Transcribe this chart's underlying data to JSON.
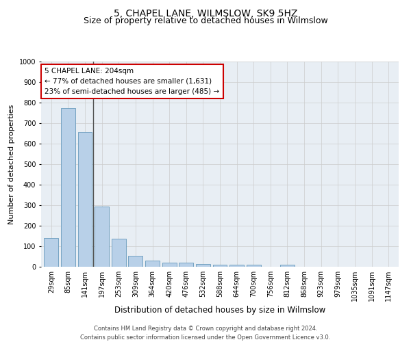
{
  "title": "5, CHAPEL LANE, WILMSLOW, SK9 5HZ",
  "subtitle": "Size of property relative to detached houses in Wilmslow",
  "xlabel": "Distribution of detached houses by size in Wilmslow",
  "ylabel": "Number of detached properties",
  "bar_values": [
    140,
    775,
    658,
    295,
    138,
    55,
    30,
    20,
    20,
    14,
    10,
    10,
    10,
    0,
    10,
    0,
    0,
    0,
    0,
    0,
    0
  ],
  "bar_labels": [
    "29sqm",
    "85sqm",
    "141sqm",
    "197sqm",
    "253sqm",
    "309sqm",
    "364sqm",
    "420sqm",
    "476sqm",
    "532sqm",
    "588sqm",
    "644sqm",
    "700sqm",
    "756sqm",
    "812sqm",
    "868sqm",
    "923sqm",
    "979sqm",
    "1035sqm",
    "1091sqm",
    "1147sqm"
  ],
  "bar_color": "#b8d0e8",
  "bar_edge_color": "#6699bb",
  "vline_color": "#555555",
  "annotation_box_edgecolor": "#cc0000",
  "property_label": "5 CHAPEL LANE: 204sqm",
  "annotation_line1": "← 77% of detached houses are smaller (1,631)",
  "annotation_line2": "23% of semi-detached houses are larger (485) →",
  "ylim": [
    0,
    1000
  ],
  "yticks": [
    0,
    100,
    200,
    300,
    400,
    500,
    600,
    700,
    800,
    900,
    1000
  ],
  "grid_color": "#cccccc",
  "bg_color": "#e8eef4",
  "footer_line1": "Contains HM Land Registry data © Crown copyright and database right 2024.",
  "footer_line2": "Contains public sector information licensed under the Open Government Licence v3.0.",
  "title_fontsize": 10,
  "subtitle_fontsize": 9,
  "xlabel_fontsize": 8.5,
  "ylabel_fontsize": 8,
  "tick_fontsize": 7,
  "annotation_fontsize": 7.5,
  "footer_fontsize": 6
}
